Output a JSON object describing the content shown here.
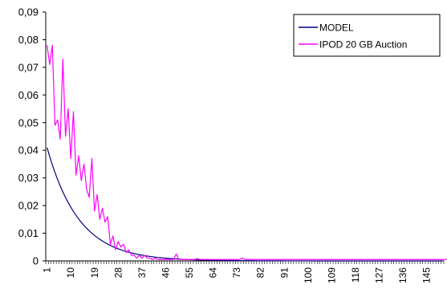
{
  "chart_data": {
    "type": "line",
    "title": "",
    "xlabel": "",
    "ylabel": "",
    "x_range": [
      1,
      151
    ],
    "x_tick_labels": [
      "1",
      "10",
      "19",
      "28",
      "37",
      "46",
      "55",
      "64",
      "73",
      "82",
      "91",
      "100",
      "109",
      "118",
      "127",
      "136",
      "145"
    ],
    "y_tick_labels": [
      "0",
      "0,01",
      "0,02",
      "0,03",
      "0,04",
      "0,05",
      "0,06",
      "0,07",
      "0,08",
      "0,09"
    ],
    "ylim": [
      0,
      0.09
    ],
    "grid": false,
    "legend_position": "top-right",
    "series": [
      {
        "name": "MODEL",
        "color": "#000080",
        "model": "exponential",
        "y0": 0.041,
        "decay_rate": 0.083
      },
      {
        "name": "IPOD 20 GB Auction",
        "color": "#ff00ff",
        "values": [
          0.078,
          0.071,
          0.078,
          0.049,
          0.051,
          0.044,
          0.073,
          0.045,
          0.055,
          0.037,
          0.054,
          0.031,
          0.038,
          0.029,
          0.035,
          0.026,
          0.023,
          0.037,
          0.018,
          0.024,
          0.015,
          0.019,
          0.014,
          0.016,
          0.006,
          0.009,
          0.004,
          0.007,
          0.005,
          0.006,
          0.003,
          0.004,
          0.002,
          0.002,
          0.001,
          0.002,
          0.001,
          0.002,
          0.001,
          0.001,
          0.0005,
          0.001,
          0.0005,
          0.0005,
          0.0005,
          0.0005,
          0.0005,
          0.0005,
          0.0005,
          0.0025,
          0.0005,
          0.0005,
          0.0005,
          0.0005,
          0.0005,
          0.0005,
          0.0005,
          0.0008,
          0.0005,
          0.0005,
          0.0005,
          0.0005,
          0.0005,
          0.0005,
          0.0005,
          0.0005,
          0.0005,
          0.0005,
          0.0005,
          0.0005,
          0.0005,
          0.0005,
          0.0005,
          0.0005,
          0.001,
          0.0005,
          0.0005,
          0.0005,
          0.0005,
          0.0005,
          0.0005,
          0.0005,
          0.0005,
          0.0005,
          0.0005,
          0.0005,
          0.0005,
          0.0005,
          0.0005,
          0.0005,
          0.0005,
          0.0005,
          0.0005,
          0.0005,
          0.0005,
          0.0005,
          0.0005,
          0.0005,
          0.0005,
          0.0005,
          0.0005,
          0.0005,
          0.0005,
          0.0005,
          0.0005,
          0.0005,
          0.0005,
          0.0005,
          0.0005,
          0.0005,
          0.0005,
          0.0005,
          0.0005,
          0.0005,
          0.0005,
          0.0005,
          0.0005,
          0.0005,
          0.0005,
          0.0005,
          0.0005,
          0.0005,
          0.0005,
          0.0005,
          0.0005,
          0.0005,
          0.0005,
          0.0005,
          0.0005,
          0.0005,
          0.0005,
          0.0005,
          0.0005,
          0.0005,
          0.0005,
          0.0005,
          0.0005,
          0.0005,
          0.0005,
          0.0005,
          0.0005,
          0.0005,
          0.0005,
          0.0005,
          0.0005,
          0.0005,
          0.0005,
          0.0005,
          0.0005,
          0.0005,
          0.0005,
          0.0005,
          0.0005,
          0.0005
        ]
      }
    ]
  }
}
